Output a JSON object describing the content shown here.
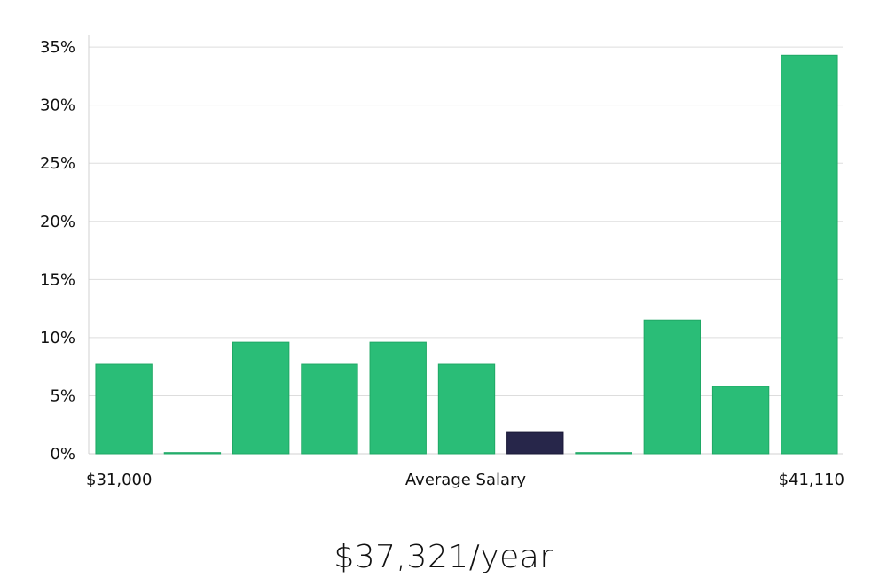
{
  "chart_data": {
    "type": "bar",
    "xlabel": "Average Salary",
    "x_min_label": "$31,000",
    "x_max_label": "$41,110",
    "ylim": [
      0,
      36
    ],
    "y_ticks": [
      0,
      5,
      10,
      15,
      20,
      25,
      30,
      35
    ],
    "y_tick_labels": [
      "0%",
      "5%",
      "10%",
      "15%",
      "20%",
      "25%",
      "30%",
      "35%"
    ],
    "grid": true,
    "highlight_index": 6,
    "values": [
      7.7,
      0.1,
      9.6,
      7.7,
      9.6,
      7.7,
      1.9,
      0.1,
      11.5,
      5.8,
      34.3
    ]
  },
  "colors": {
    "bar": "#2abd77",
    "bar_edge": "#1fa865",
    "highlight": "#27264a",
    "grid": "#dddddd",
    "axis": "#d0d0d0"
  },
  "summary": {
    "salary_text": "$37,321/year"
  }
}
